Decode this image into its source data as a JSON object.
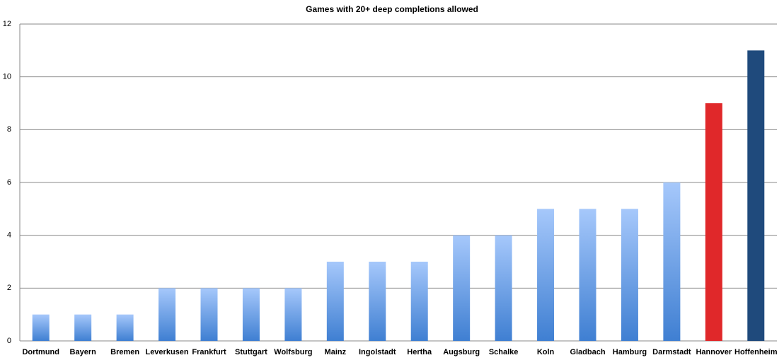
{
  "chart_data": {
    "type": "bar",
    "title": "Games with 20+ deep completions allowed",
    "categories": [
      "Dortmund",
      "Bayern",
      "Bremen",
      "Leverkusen",
      "Frankfurt",
      "Stuttgart",
      "Wolfsburg",
      "Mainz",
      "Ingolstadt",
      "Hertha",
      "Augsburg",
      "Schalke",
      "Koln",
      "Gladbach",
      "Hamburg",
      "Darmstadt",
      "Hannover",
      "Hoffenheim"
    ],
    "values": [
      1,
      1,
      1,
      2,
      2,
      2,
      2,
      3,
      3,
      3,
      4,
      4,
      5,
      5,
      5,
      6,
      9,
      11
    ],
    "color": "#3f7fd2",
    "colors": [
      "#3f7fd2",
      "#3f7fd2",
      "#3f7fd2",
      "#3f7fd2",
      "#3f7fd2",
      "#3f7fd2",
      "#3f7fd2",
      "#3f7fd2",
      "#3f7fd2",
      "#3f7fd2",
      "#3f7fd2",
      "#3f7fd2",
      "#3f7fd2",
      "#3f7fd2",
      "#3f7fd2",
      "#3f7fd2",
      "#e0282a",
      "#1f4a7c"
    ],
    "ylim": [
      0,
      12
    ],
    "yticks": [
      0,
      2,
      4,
      6,
      8,
      10,
      12
    ],
    "grid": true
  }
}
